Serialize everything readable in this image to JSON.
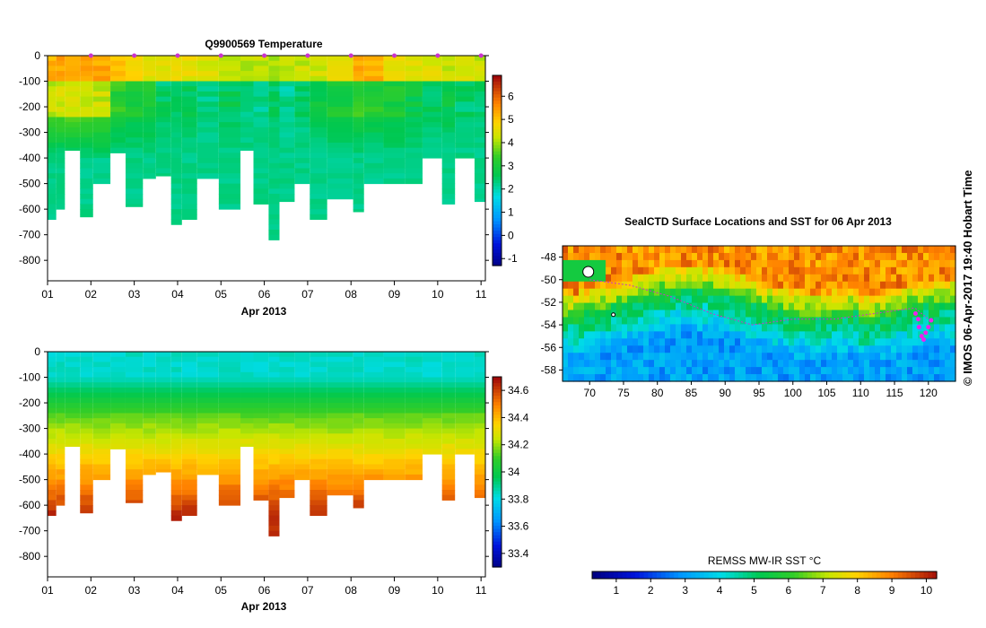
{
  "charts": {
    "temperature": {
      "title": "Q9900569  Temperature",
      "xlabel": "Apr 2013",
      "y_ticks": [
        0,
        -100,
        -200,
        -300,
        -400,
        -500,
        -600,
        -700,
        -800
      ],
      "x_ticks": [
        "01",
        "02",
        "03",
        "04",
        "05",
        "06",
        "07",
        "08",
        "09",
        "10",
        "11"
      ],
      "colorbar_ticks": [
        -1,
        0,
        1,
        2,
        3,
        4,
        5,
        6
      ]
    },
    "salinity": {
      "xlabel": "Apr 2013",
      "y_ticks": [
        0,
        -100,
        -200,
        -300,
        -400,
        -500,
        -600,
        -700,
        -800
      ],
      "x_ticks": [
        "01",
        "02",
        "03",
        "04",
        "05",
        "06",
        "07",
        "08",
        "09",
        "10",
        "11"
      ],
      "colorbar_ticks": [
        "33.4",
        "33.6",
        "33.8",
        "34",
        "34.2",
        "34.4",
        "34.6"
      ]
    },
    "map": {
      "title": "SealCTD Surface Locations and SST for 06 Apr 2013",
      "lat_ticks": [
        -48,
        -50,
        -52,
        -54,
        -56,
        -58
      ],
      "lon_ticks": [
        70,
        75,
        80,
        85,
        90,
        95,
        100,
        105,
        110,
        115,
        120
      ],
      "colorbar_label": "REMSS MW-IR SST °C",
      "colorbar_ticks": [
        1,
        2,
        3,
        4,
        5,
        6,
        7,
        8,
        9,
        10
      ]
    }
  },
  "credit": "© IMOS 06-Apr-2017 19:40 Hobart Time",
  "chart_data": [
    {
      "type": "heatmap",
      "title": "Q9900569  Temperature",
      "xlabel": "Apr 2013",
      "ylabel": "",
      "xlim": [
        1,
        11.1
      ],
      "ylim": [
        -880,
        0
      ],
      "colorbar_range": [
        -1.3,
        6.9
      ],
      "profile_days": [
        1.0,
        1.2,
        1.4,
        1.75,
        2.05,
        2.45,
        2.8,
        3.2,
        3.5,
        3.85,
        4.1,
        4.45,
        4.95,
        5.45,
        5.75,
        6.1,
        6.35,
        6.7,
        7.05,
        7.45,
        8.05,
        8.3,
        8.75,
        9.25,
        9.65,
        10.1,
        10.4,
        10.85
      ],
      "max_depth": [
        -640,
        -600,
        -370,
        -630,
        -500,
        -380,
        -590,
        -480,
        -470,
        -660,
        -640,
        -480,
        -600,
        -370,
        -580,
        -720,
        -570,
        -500,
        -640,
        -560,
        -610,
        -500,
        -500,
        -500,
        -400,
        -580,
        -400,
        -570
      ],
      "surface_temp": [
        5.3,
        5.4,
        5.5,
        5.5,
        5.4,
        5.0,
        4.8,
        4.6,
        4.6,
        4.6,
        4.6,
        4.5,
        4.3,
        4.1,
        4.3,
        4.0,
        4.2,
        4.3,
        4.4,
        4.6,
        5.3,
        5.3,
        4.7,
        4.5,
        4.5,
        4.3,
        4.5,
        4.3
      ],
      "upper_temp": [
        4.3,
        4.4,
        4.4,
        4.4,
        4.3,
        3.3,
        3.0,
        3.0,
        2.5,
        2.6,
        2.6,
        2.4,
        2.6,
        2.4,
        2.3,
        2.6,
        2.2,
        2.4,
        2.8,
        3.0,
        3.3,
        3.2,
        3.1,
        2.8,
        2.6,
        2.8,
        2.5,
        2.5
      ],
      "deep_temp": 2.3,
      "float_surfacing_days": [
        2.0,
        3.0,
        4.0,
        5.0,
        6.0,
        7.0,
        8.0,
        9.0,
        10.0,
        11.0
      ]
    },
    {
      "type": "heatmap",
      "title": "",
      "xlabel": "Apr 2013",
      "ylabel": "",
      "xlim": [
        1,
        11.1
      ],
      "ylim": [
        -880,
        0
      ],
      "colorbar_range": [
        33.3,
        34.7
      ],
      "surface_salinity": 33.85,
      "mid_salinity_200m": 34.05,
      "deep_salinity": 34.5
    },
    {
      "type": "heatmap",
      "title": "SealCTD Surface Locations and SST for 06 Apr 2013",
      "xlim": [
        66,
        124
      ],
      "ylim": [
        -59,
        -47
      ],
      "colorbar_range": [
        0.3,
        10.3
      ],
      "colorbar_label": "REMSS MW-IR SST °C",
      "sst_north": 9.5,
      "sst_front_lat": -52,
      "sst_south": 3.0,
      "seal_track_lon": [
        70,
        76,
        82,
        88,
        94,
        100,
        106,
        112,
        118,
        120
      ],
      "seal_track_lat": [
        -50.0,
        -50.5,
        -51.5,
        -53.0,
        -54.0,
        -53.5,
        -53.5,
        -53.0,
        -52.5,
        -53.5
      ],
      "recent_positions_lon": [
        118.1,
        118.5,
        118.6,
        119.0,
        119.3,
        119.6,
        120.0,
        120.4
      ],
      "recent_positions_lat": [
        -53.0,
        -53.5,
        -54.2,
        -55.0,
        -55.3,
        -54.7,
        -54.2,
        -53.6
      ]
    }
  ]
}
